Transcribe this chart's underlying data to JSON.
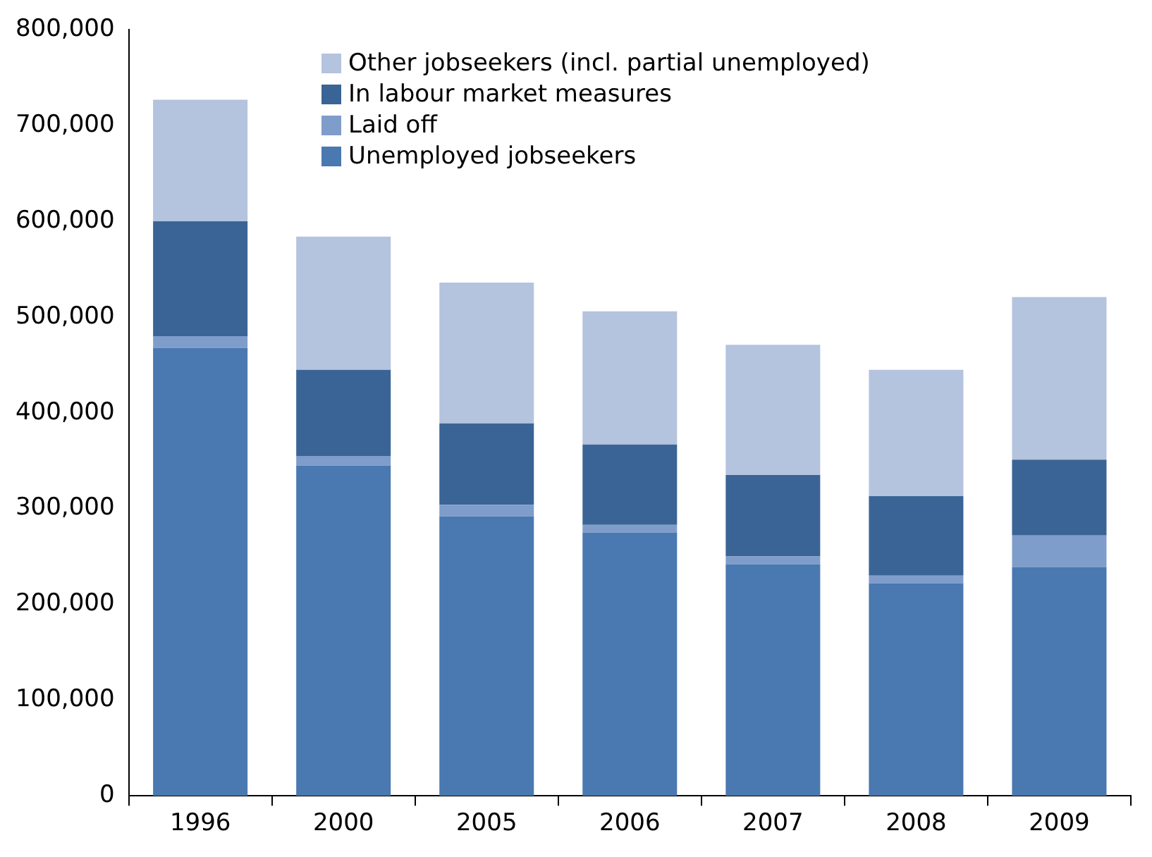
{
  "chart_data": {
    "type": "bar",
    "stacked": true,
    "categories": [
      "1996",
      "2000",
      "2005",
      "2006",
      "2007",
      "2008",
      "2009"
    ],
    "series": [
      {
        "name": "Unemployed jobseekers",
        "color": "#4a78b0",
        "values": [
          468000,
          345000,
          292000,
          275000,
          242000,
          222000,
          239000
        ]
      },
      {
        "name": "Laid off",
        "color": "#7f9dcb",
        "values": [
          12000,
          10000,
          12000,
          8000,
          8000,
          8000,
          33000
        ]
      },
      {
        "name": "In labour market measures",
        "color": "#3a6495",
        "values": [
          120000,
          90000,
          85000,
          84000,
          85000,
          83000,
          79000
        ]
      },
      {
        "name": "Other jobseekers (incl. partial unemployed)",
        "color": "#b4c3de",
        "values": [
          127000,
          139000,
          147000,
          139000,
          136000,
          132000,
          170000
        ]
      }
    ],
    "ylim": [
      0,
      800000
    ],
    "yticks": [
      0,
      {
        "value": 100000,
        "label": "100,000"
      },
      {
        "value": 200000,
        "label": "200,000"
      },
      {
        "value": 300000,
        "label": "300,000"
      },
      {
        "value": 400000,
        "label": "400,000"
      },
      {
        "value": 500000,
        "label": "500,000"
      },
      {
        "value": 600000,
        "label": "600,000"
      },
      {
        "value": 700000,
        "label": "700,000"
      },
      {
        "value": 800000,
        "label": "800,000"
      }
    ],
    "grid": false,
    "legend": "top"
  }
}
